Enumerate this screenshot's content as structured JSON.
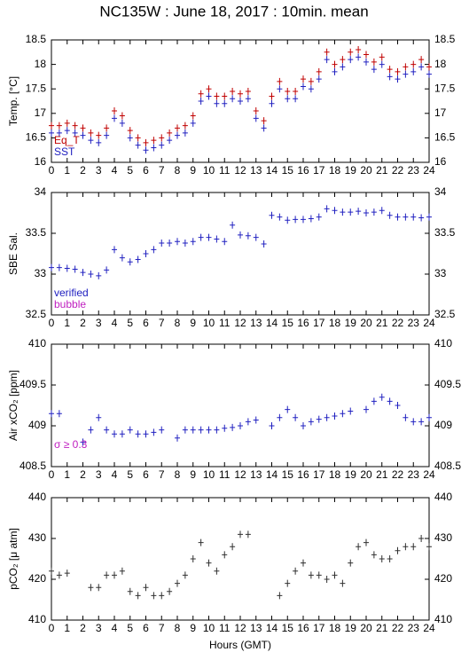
{
  "chart_data": [
    {
      "type": "scatter",
      "title": "NC135W : June 18, 2017 : 10min. mean",
      "ylabel": "Temp. [°C]",
      "x": [
        0,
        0.5,
        1,
        1.5,
        2,
        2.5,
        3,
        3.5,
        4,
        4.5,
        5,
        5.5,
        6,
        6.5,
        7,
        7.5,
        8,
        8.5,
        9,
        9.5,
        10,
        10.5,
        11,
        11.5,
        12,
        12.5,
        13,
        13.5,
        14,
        14.5,
        15,
        15.5,
        16,
        16.5,
        17,
        17.5,
        18,
        18.5,
        19,
        19.5,
        20,
        20.5,
        21,
        21.5,
        22,
        22.5,
        23,
        23.5,
        24
      ],
      "xlim": [
        0,
        24
      ],
      "xticks": [
        0,
        1,
        2,
        3,
        4,
        5,
        6,
        7,
        8,
        9,
        10,
        11,
        12,
        13,
        14,
        15,
        16,
        17,
        18,
        19,
        20,
        21,
        22,
        23,
        24
      ],
      "ylim": [
        16,
        18.5
      ],
      "yticks": [
        16,
        16.5,
        17,
        17.5,
        18,
        18.5
      ],
      "series": [
        {
          "name": "Eq_T",
          "color": "#c00000",
          "values": [
            16.75,
            16.75,
            16.8,
            16.75,
            16.7,
            16.6,
            16.55,
            16.7,
            17.05,
            16.95,
            16.65,
            16.5,
            16.4,
            16.45,
            16.5,
            16.6,
            16.7,
            16.75,
            16.95,
            17.4,
            17.5,
            17.35,
            17.35,
            17.45,
            17.4,
            17.45,
            17.05,
            16.85,
            17.35,
            17.65,
            17.45,
            17.45,
            17.7,
            17.65,
            17.85,
            18.25,
            18.0,
            18.1,
            18.25,
            18.3,
            18.2,
            18.05,
            18.15,
            17.9,
            17.85,
            17.95,
            18.0,
            18.1,
            17.95
          ]
        },
        {
          "name": "SST",
          "color": "#2020c0",
          "values": [
            16.6,
            16.6,
            16.65,
            16.6,
            16.55,
            16.45,
            16.4,
            16.55,
            16.9,
            16.8,
            16.5,
            16.35,
            16.25,
            16.3,
            16.35,
            16.45,
            16.55,
            16.6,
            16.8,
            17.25,
            17.35,
            17.2,
            17.2,
            17.3,
            17.25,
            17.3,
            16.9,
            16.7,
            17.2,
            17.5,
            17.3,
            17.3,
            17.55,
            17.5,
            17.7,
            18.1,
            17.85,
            17.95,
            18.1,
            18.15,
            18.05,
            17.9,
            18.0,
            17.75,
            17.7,
            17.8,
            17.85,
            17.95,
            17.8
          ]
        }
      ]
    },
    {
      "type": "scatter",
      "ylabel": "SBE Sal.",
      "x": [
        0,
        0.5,
        1,
        1.5,
        2,
        2.5,
        3,
        3.5,
        4,
        4.5,
        5,
        5.5,
        6,
        6.5,
        7,
        7.5,
        8,
        8.5,
        9,
        9.5,
        10,
        10.5,
        11,
        11.5,
        12,
        12.5,
        13,
        13.5,
        14,
        14.5,
        15,
        15.5,
        16,
        16.5,
        17,
        17.5,
        18,
        18.5,
        19,
        19.5,
        20,
        20.5,
        21,
        21.5,
        22,
        22.5,
        23,
        23.5,
        24
      ],
      "xlim": [
        0,
        24
      ],
      "xticks": [
        0,
        1,
        2,
        3,
        4,
        5,
        6,
        7,
        8,
        9,
        10,
        11,
        12,
        13,
        14,
        15,
        16,
        17,
        18,
        19,
        20,
        21,
        22,
        23,
        24
      ],
      "ylim": [
        32.5,
        34
      ],
      "yticks": [
        32.5,
        33,
        33.5,
        34
      ],
      "series": [
        {
          "name": "verified",
          "color": "#2020c0",
          "values": [
            33.08,
            33.08,
            33.07,
            33.06,
            33.02,
            33.0,
            32.98,
            33.05,
            33.3,
            33.2,
            33.15,
            33.18,
            33.25,
            33.3,
            33.38,
            33.38,
            33.4,
            33.38,
            33.4,
            33.45,
            33.45,
            33.43,
            33.4,
            33.6,
            33.48,
            33.47,
            33.45,
            33.37,
            33.72,
            33.7,
            33.66,
            33.67,
            33.67,
            33.68,
            33.7,
            33.8,
            33.78,
            33.76,
            33.76,
            33.77,
            33.75,
            33.76,
            33.78,
            33.72,
            33.7,
            33.7,
            33.7,
            33.69,
            33.7
          ]
        }
      ],
      "annotations": [
        {
          "text": "bubble",
          "color": "#c020c0"
        }
      ]
    },
    {
      "type": "scatter",
      "ylabel": "Air xCO₂ [ppm]",
      "x": [
        0,
        0.5,
        1,
        1.5,
        2,
        2.5,
        3,
        3.5,
        4,
        4.5,
        5,
        5.5,
        6,
        6.5,
        7,
        7.5,
        8,
        8.5,
        9,
        9.5,
        10,
        10.5,
        11,
        11.5,
        12,
        12.5,
        13,
        13.5,
        14,
        14.5,
        15,
        15.5,
        16,
        16.5,
        17,
        17.5,
        18,
        18.5,
        19,
        19.5,
        20,
        20.5,
        21,
        21.5,
        22,
        22.5,
        23,
        23.5,
        24
      ],
      "xlim": [
        0,
        24
      ],
      "xticks": [
        0,
        1,
        2,
        3,
        4,
        5,
        6,
        7,
        8,
        9,
        10,
        11,
        12,
        13,
        14,
        15,
        16,
        17,
        18,
        19,
        20,
        21,
        22,
        23,
        24
      ],
      "ylim": [
        408.5,
        410
      ],
      "yticks": [
        408.5,
        409,
        409.5,
        410
      ],
      "series": [
        {
          "color": "#2020c0",
          "values": [
            409.15,
            409.15,
            null,
            null,
            408.8,
            408.95,
            409.1,
            408.95,
            408.9,
            408.9,
            408.95,
            408.9,
            408.9,
            408.92,
            408.95,
            null,
            408.85,
            408.95,
            408.95,
            408.95,
            408.95,
            408.95,
            408.97,
            408.98,
            409.0,
            409.05,
            409.07,
            null,
            409.0,
            409.1,
            409.2,
            409.1,
            409.0,
            409.05,
            409.08,
            409.1,
            409.12,
            409.15,
            409.18,
            null,
            409.2,
            409.3,
            409.35,
            409.3,
            409.25,
            409.1,
            409.05,
            409.05,
            409.1
          ]
        }
      ],
      "annotations": [
        {
          "text": "σ ≥ 0.3",
          "color": "#c020c0"
        }
      ]
    },
    {
      "type": "scatter",
      "ylabel": "pCO₂ [μ atm]",
      "xlabel": "Hours (GMT)",
      "x": [
        0,
        0.5,
        1,
        1.5,
        2,
        2.5,
        3,
        3.5,
        4,
        4.5,
        5,
        5.5,
        6,
        6.5,
        7,
        7.5,
        8,
        8.5,
        9,
        9.5,
        10,
        10.5,
        11,
        11.5,
        12,
        12.5,
        13,
        13.5,
        14,
        14.5,
        15,
        15.5,
        16,
        16.5,
        17,
        17.5,
        18,
        18.5,
        19,
        19.5,
        20,
        20.5,
        21,
        21.5,
        22,
        22.5,
        23,
        23.5,
        24
      ],
      "xlim": [
        0,
        24
      ],
      "xticks": [
        0,
        1,
        2,
        3,
        4,
        5,
        6,
        7,
        8,
        9,
        10,
        11,
        12,
        13,
        14,
        15,
        16,
        17,
        18,
        19,
        20,
        21,
        22,
        23,
        24
      ],
      "ylim": [
        410,
        440
      ],
      "yticks": [
        410,
        420,
        430,
        440
      ],
      "series": [
        {
          "color": "#303030",
          "values": [
            422,
            421,
            421.5,
            null,
            null,
            418,
            418,
            421,
            421,
            422,
            417,
            416,
            418,
            416,
            416,
            417,
            419,
            421,
            425,
            429,
            424,
            422,
            426,
            428,
            431,
            431,
            null,
            null,
            null,
            416,
            419,
            422,
            424,
            421,
            421,
            420,
            421,
            419,
            424,
            428,
            429,
            426,
            425,
            425,
            427,
            428,
            428,
            430,
            428
          ]
        }
      ]
    }
  ]
}
